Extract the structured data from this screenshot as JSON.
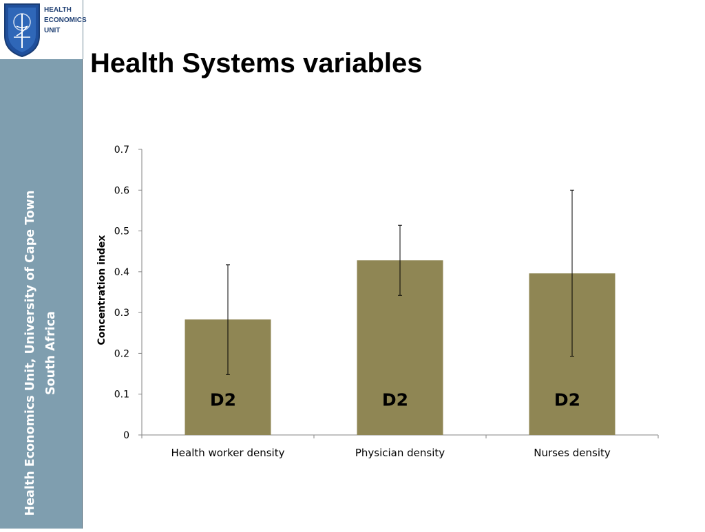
{
  "slide": {
    "title": "Health Systems variables",
    "sidebar_lines": [
      "Health Economics Unit, University of Cape Town",
      "South Africa"
    ],
    "logo_lines": [
      "HEALTH",
      "ECONOMICS",
      "UNIT"
    ]
  },
  "colors": {
    "sidebar": "#7f9eaf",
    "bar": "#8f8654",
    "logo_text": "#1f3f73"
  },
  "chart_data": {
    "type": "bar",
    "title": "",
    "xlabel": "",
    "ylabel": "Concentration index",
    "ylim": [
      0,
      0.7
    ],
    "yticks": [
      "0",
      "0.1",
      "0.2",
      "0.3",
      "0.4",
      "0.5",
      "0.6",
      "0.7"
    ],
    "grid": false,
    "categories": [
      "Health worker density",
      "Physician density",
      "Nurses density"
    ],
    "values": [
      0.283,
      0.428,
      0.396
    ],
    "error_low": [
      0.148,
      0.342,
      0.193
    ],
    "error_high": [
      0.417,
      0.514,
      0.6
    ],
    "bar_labels": [
      "D2",
      "D2",
      "D2"
    ]
  }
}
